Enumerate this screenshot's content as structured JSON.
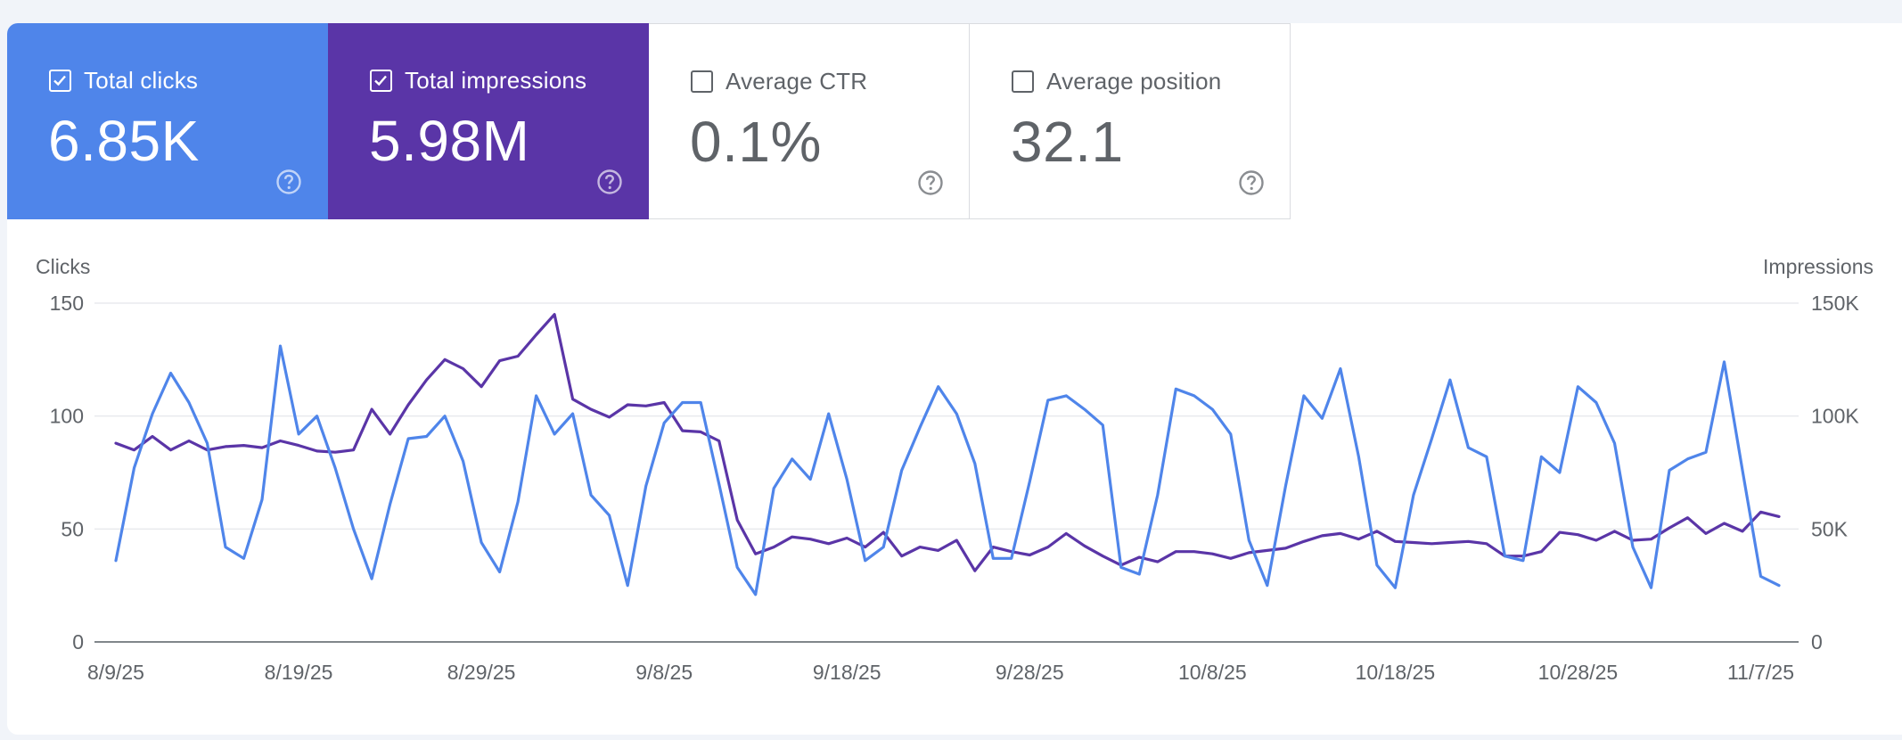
{
  "metrics": [
    {
      "label": "Total clicks",
      "value": "6.85K",
      "checked": true,
      "color": "#4f85ea"
    },
    {
      "label": "Total impressions",
      "value": "5.98M",
      "checked": true,
      "color": "#5a35a7"
    },
    {
      "label": "Average CTR",
      "value": "0.1%",
      "checked": false,
      "color": "#ffffff"
    },
    {
      "label": "Average position",
      "value": "32.1",
      "checked": false,
      "color": "#ffffff"
    }
  ],
  "icons": {
    "checkbox": "checkbox-icon",
    "help": "help-circle-icon"
  },
  "chart_data": {
    "type": "line",
    "left_axis_title": "Clicks",
    "right_axis_title": "Impressions",
    "left_ylim": [
      0,
      150
    ],
    "right_ylim": [
      0,
      150000
    ],
    "left_ticks": [
      "0",
      "50",
      "100",
      "150"
    ],
    "right_ticks": [
      "0",
      "50K",
      "100K",
      "150K"
    ],
    "x_ticks": [
      "8/9/25",
      "8/19/25",
      "8/29/25",
      "9/8/25",
      "9/18/25",
      "9/28/25",
      "10/8/25",
      "10/18/25",
      "10/28/25",
      "11/7/25"
    ],
    "grid": true,
    "series": [
      {
        "name": "Total clicks",
        "axis": "left",
        "color": "#4f85ea",
        "values": [
          36,
          77,
          101,
          119,
          106,
          88,
          42,
          37,
          63,
          131,
          92,
          100,
          77,
          50,
          28,
          61,
          90,
          91,
          100,
          80,
          44,
          31,
          62,
          109,
          92,
          101,
          65,
          56,
          25,
          69,
          97,
          106,
          106,
          70,
          33,
          21,
          68,
          81,
          72,
          101,
          72,
          36,
          42,
          76,
          95,
          113,
          101,
          79,
          37,
          37,
          71,
          107,
          109,
          103,
          96,
          33,
          30,
          65,
          112,
          109,
          103,
          92,
          45,
          25,
          69,
          109,
          99,
          121,
          82,
          34,
          24,
          65,
          90,
          116,
          86,
          82,
          38,
          36,
          82,
          75,
          113,
          106,
          88,
          42,
          24,
          76,
          81,
          84,
          124,
          76,
          29,
          25
        ]
      },
      {
        "name": "Total impressions",
        "axis": "right",
        "color": "#5a35a7",
        "values": [
          88000,
          85000,
          91000,
          85000,
          89000,
          85000,
          86500,
          87000,
          86000,
          89000,
          87000,
          84500,
          84000,
          85000,
          103000,
          92000,
          105000,
          116000,
          125000,
          121000,
          113000,
          124500,
          126500,
          136000,
          145000,
          107500,
          103000,
          99500,
          105000,
          104500,
          106000,
          93500,
          93000,
          89000,
          54000,
          39000,
          42000,
          46500,
          45500,
          43500,
          46000,
          42000,
          48500,
          38000,
          42000,
          40500,
          45000,
          31500,
          42000,
          40000,
          38500,
          42000,
          48000,
          42500,
          38000,
          34000,
          37500,
          35500,
          40000,
          40000,
          39000,
          37000,
          39500,
          40500,
          41500,
          44500,
          47000,
          48000,
          45500,
          49000,
          44500,
          44000,
          43500,
          44000,
          44500,
          43500,
          38000,
          38000,
          40000,
          48500,
          47500,
          45000,
          49000,
          45000,
          45500,
          50500,
          55000,
          48000,
          52500,
          49000,
          57500,
          55500
        ]
      }
    ]
  }
}
